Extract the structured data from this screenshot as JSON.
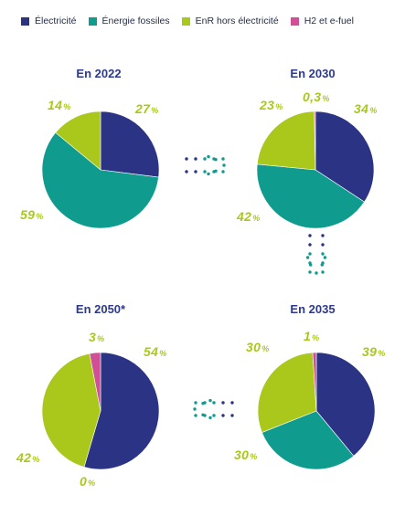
{
  "legend": [
    {
      "label": "Électricité",
      "color": "#2b3384"
    },
    {
      "label": "Énergie fossiles",
      "color": "#0f9b8e"
    },
    {
      "label": "EnR hors électricité",
      "color": "#aac81b"
    },
    {
      "label": "H2 et e-fuel",
      "color": "#d14f95"
    }
  ],
  "percent_sign": "%",
  "chart_data": [
    {
      "type": "pie",
      "title": "En 2022",
      "slices": [
        {
          "series": "Électricité",
          "value": 27,
          "label": "27"
        },
        {
          "series": "Énergie fossiles",
          "value": 59,
          "label": "59"
        },
        {
          "series": "EnR hors électricité",
          "value": 14,
          "label": "14"
        }
      ]
    },
    {
      "type": "pie",
      "title": "En 2030",
      "slices": [
        {
          "series": "Électricité",
          "value": 34,
          "label": "34"
        },
        {
          "series": "Énergie fossiles",
          "value": 42,
          "label": "42"
        },
        {
          "series": "EnR hors électricité",
          "value": 23,
          "label": "23"
        },
        {
          "series": "H2 et e-fuel",
          "value": 0.3,
          "label": "0,3"
        }
      ]
    },
    {
      "type": "pie",
      "title": "En 2035",
      "slices": [
        {
          "series": "Électricité",
          "value": 39,
          "label": "39"
        },
        {
          "series": "Énergie fossiles",
          "value": 30,
          "label": "30"
        },
        {
          "series": "EnR hors électricité",
          "value": 30,
          "label": "30"
        },
        {
          "series": "H2 et e-fuel",
          "value": 1,
          "label": "1"
        }
      ]
    },
    {
      "type": "pie",
      "title": "En 2050*",
      "slices": [
        {
          "series": "Électricité",
          "value": 54,
          "label": "54"
        },
        {
          "series": "Énergie fossiles",
          "value": 0,
          "label": "0"
        },
        {
          "series": "EnR hors électricité",
          "value": 42,
          "label": "42"
        },
        {
          "series": "H2 et e-fuel",
          "value": 3,
          "label": "3"
        }
      ]
    }
  ],
  "flow_arrow_colors": [
    "#2b3384",
    "#0f9b8e",
    "#aac81b"
  ]
}
